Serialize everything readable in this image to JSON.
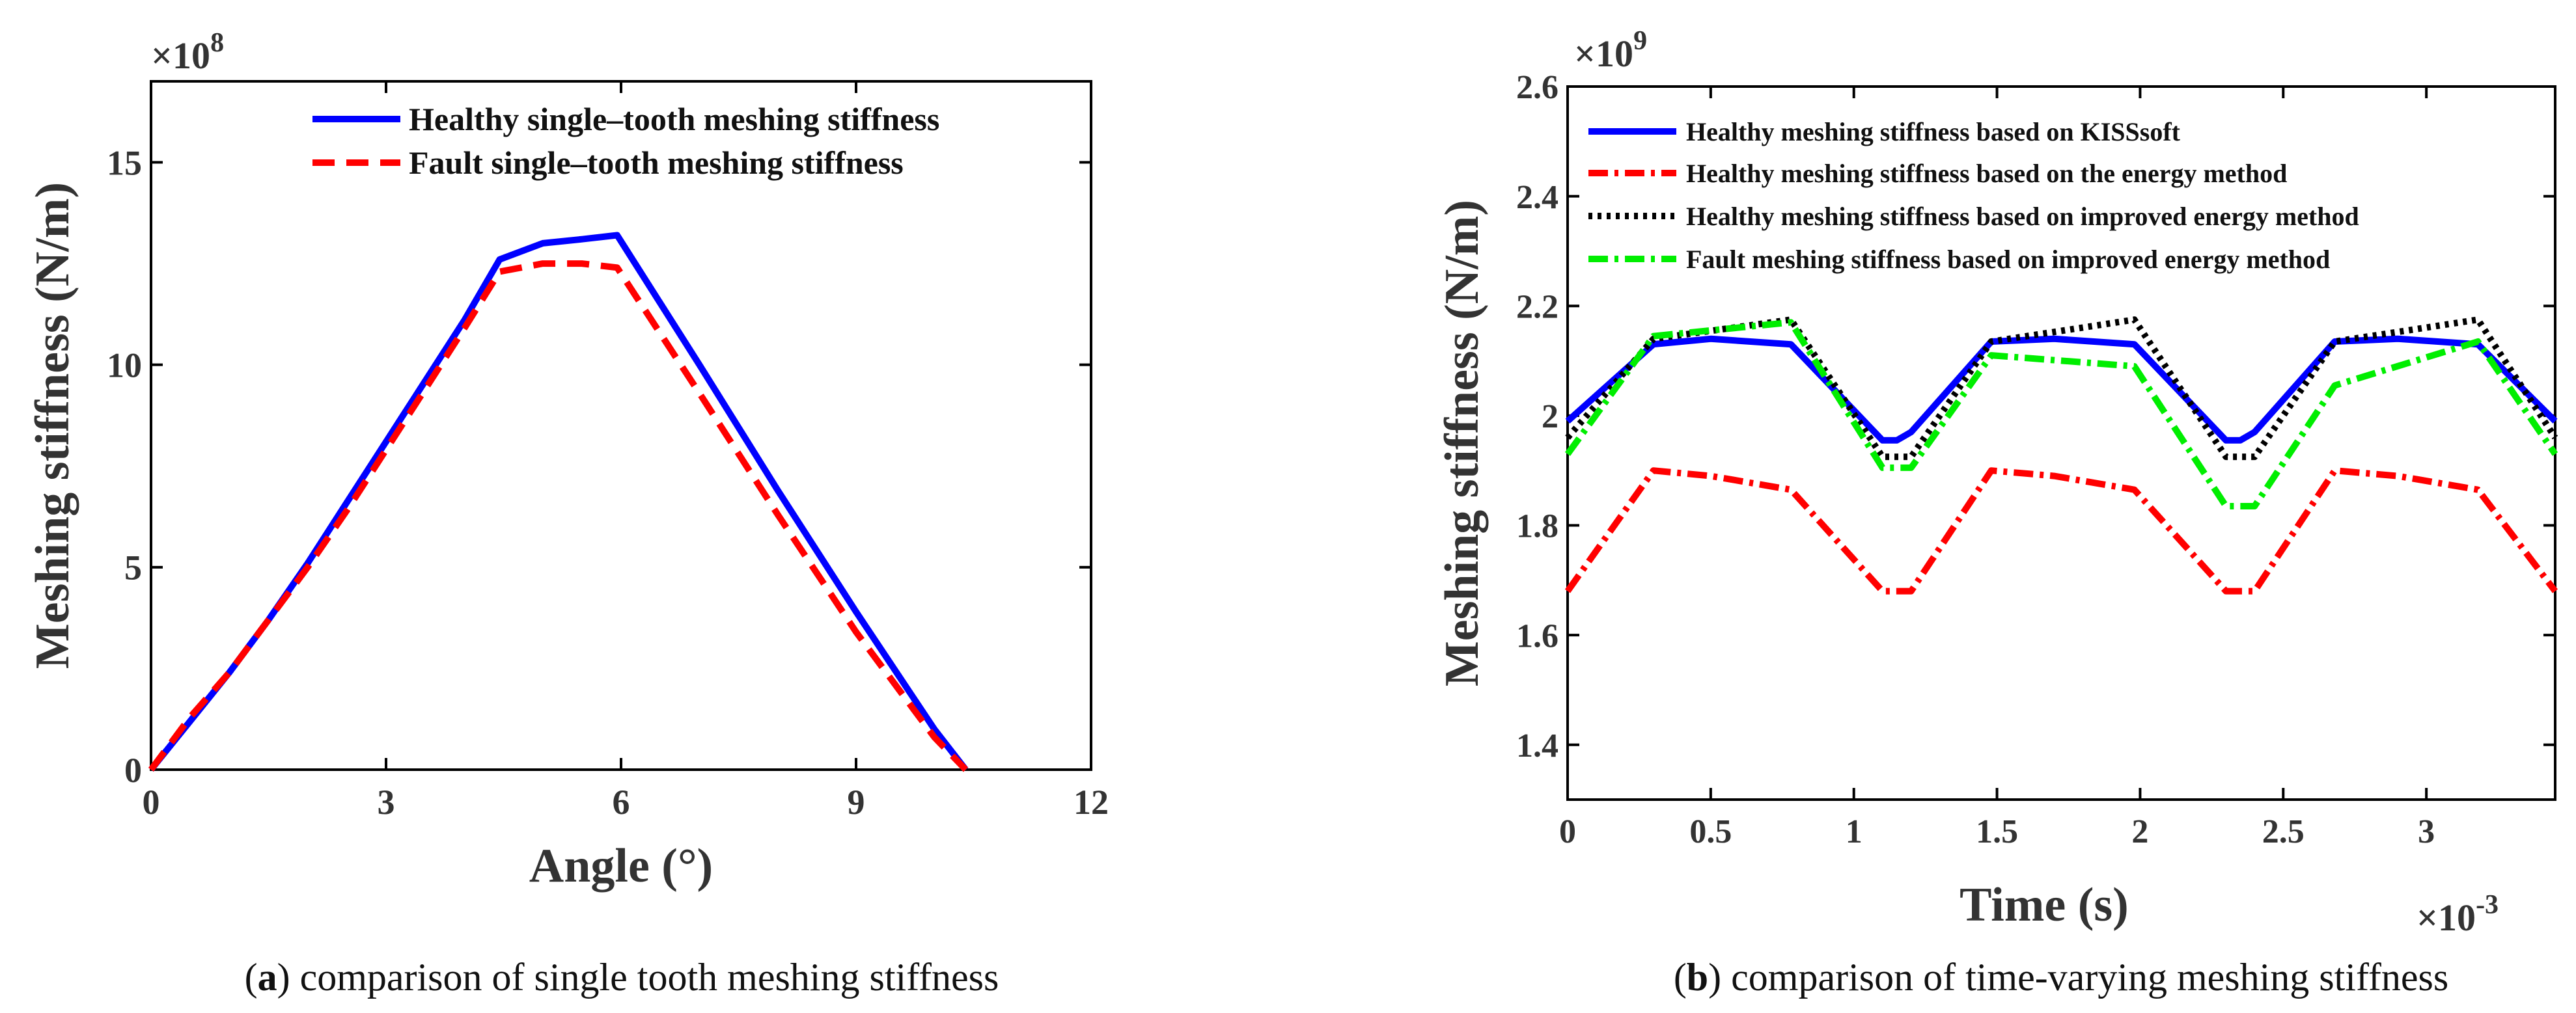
{
  "figure": {
    "caption_a_label": "a",
    "caption_a_text": ") comparison of single tooth meshing stiffness",
    "caption_b_label": "b",
    "caption_b_text": ") comparison of time-varying meshing stiffness"
  },
  "colors": {
    "healthy": "#0000ff",
    "fault": "#ff0000",
    "black": "#000000",
    "green": "#00ee00"
  },
  "chart_data": [
    {
      "type": "line",
      "panel": "a",
      "title": "",
      "xlabel": "Angle (°)",
      "ylabel": "Meshing stiffness (N/m)",
      "y_multiplier": "×10",
      "y_exponent": "8",
      "xlim": [
        0,
        12
      ],
      "ylim": [
        0,
        17
      ],
      "xticks": [
        0,
        3,
        6,
        9,
        12
      ],
      "xtick_labels": [
        "0",
        "3",
        "6",
        "9",
        "12"
      ],
      "yticks": [
        0,
        5,
        10,
        15
      ],
      "ytick_labels": [
        "0",
        "5",
        "10",
        "15"
      ],
      "legend_position": "top-right",
      "series": [
        {
          "name": "Healthy single–tooth meshing stiffness",
          "color_key": "healthy",
          "style": "solid",
          "x": [
            0,
            0.5,
            1,
            1.5,
            2,
            2.5,
            3,
            3.5,
            4,
            4.45,
            5,
            5.5,
            5.95,
            7,
            8,
            9,
            10,
            10.4
          ],
          "y": [
            0,
            1.2,
            2.4,
            3.7,
            5.1,
            6.6,
            8.1,
            9.6,
            11.1,
            12.6,
            13.0,
            13.1,
            13.2,
            10.0,
            6.9,
            3.9,
            1.0,
            0
          ]
        },
        {
          "name": "Fault single–tooth meshing stiffness",
          "color_key": "fault",
          "style": "dashed",
          "x": [
            0,
            0.5,
            1,
            1.5,
            2,
            2.5,
            3,
            3.5,
            4,
            4.45,
            5,
            5.5,
            5.95,
            7,
            8,
            9,
            10,
            10.4
          ],
          "y": [
            0,
            1.3,
            2.4,
            3.7,
            5.0,
            6.4,
            7.9,
            9.4,
            10.9,
            12.3,
            12.5,
            12.5,
            12.4,
            9.3,
            6.3,
            3.4,
            0.8,
            0
          ]
        }
      ]
    },
    {
      "type": "line",
      "panel": "b",
      "title": "",
      "xlabel": "Time (s)",
      "ylabel": "Meshing stiffness (N/m)",
      "y_multiplier": "×10",
      "y_exponent": "9",
      "x_multiplier": "×10",
      "x_exponent": "-3",
      "xlim": [
        0,
        3.45
      ],
      "ylim": [
        1.3,
        2.6
      ],
      "xticks": [
        0,
        0.5,
        1,
        1.5,
        2,
        2.5,
        3
      ],
      "xtick_labels": [
        "0",
        "0.5",
        "1",
        "1.5",
        "2",
        "2.5",
        "3"
      ],
      "yticks": [
        1.4,
        1.6,
        1.8,
        2.0,
        2.2,
        2.4,
        2.6
      ],
      "ytick_labels": [
        "1.4",
        "1.6",
        "1.8",
        "2",
        "2.2",
        "2.4",
        "2.6"
      ],
      "legend_position": "top",
      "series": [
        {
          "name": "Healthy meshing stiffness based on KISSsoft",
          "color_key": "healthy",
          "style": "solid",
          "x": [
            0,
            0.3,
            0.5,
            0.78,
            1.1,
            1.15,
            1.2,
            1.48,
            1.7,
            1.98,
            2.3,
            2.35,
            2.4,
            2.68,
            2.9,
            3.18,
            3.45
          ],
          "y": [
            1.99,
            2.13,
            2.14,
            2.13,
            1.955,
            1.955,
            1.97,
            2.135,
            2.14,
            2.13,
            1.955,
            1.955,
            1.97,
            2.135,
            2.14,
            2.13,
            1.99
          ]
        },
        {
          "name": "Healthy meshing stiffness based on the energy method",
          "color_key": "fault",
          "style": "dashdot",
          "x": [
            0,
            0.3,
            0.5,
            0.78,
            1.1,
            1.2,
            1.48,
            1.7,
            1.98,
            2.3,
            2.4,
            2.68,
            2.9,
            3.18,
            3.45
          ],
          "y": [
            1.68,
            1.9,
            1.89,
            1.865,
            1.68,
            1.68,
            1.9,
            1.89,
            1.865,
            1.68,
            1.68,
            1.9,
            1.89,
            1.865,
            1.68
          ]
        },
        {
          "name": "Healthy meshing stiffness based on improved energy method",
          "color_key": "black",
          "style": "dotted",
          "x": [
            0,
            0.3,
            0.78,
            1.1,
            1.2,
            1.48,
            1.98,
            2.3,
            2.4,
            2.68,
            3.18,
            3.45
          ],
          "y": [
            1.96,
            2.14,
            2.175,
            1.925,
            1.925,
            2.135,
            2.175,
            1.925,
            1.925,
            2.135,
            2.175,
            1.96
          ]
        },
        {
          "name": "Fault meshing stiffness based on improved energy method",
          "color_key": "green",
          "style": "dashdot",
          "x": [
            0,
            0.3,
            0.78,
            1.1,
            1.2,
            1.48,
            1.98,
            2.3,
            2.4,
            2.68,
            3.18,
            3.45
          ],
          "y": [
            1.93,
            2.145,
            2.17,
            1.905,
            1.905,
            2.11,
            2.09,
            1.835,
            1.835,
            2.055,
            2.135,
            1.93
          ]
        }
      ]
    }
  ]
}
